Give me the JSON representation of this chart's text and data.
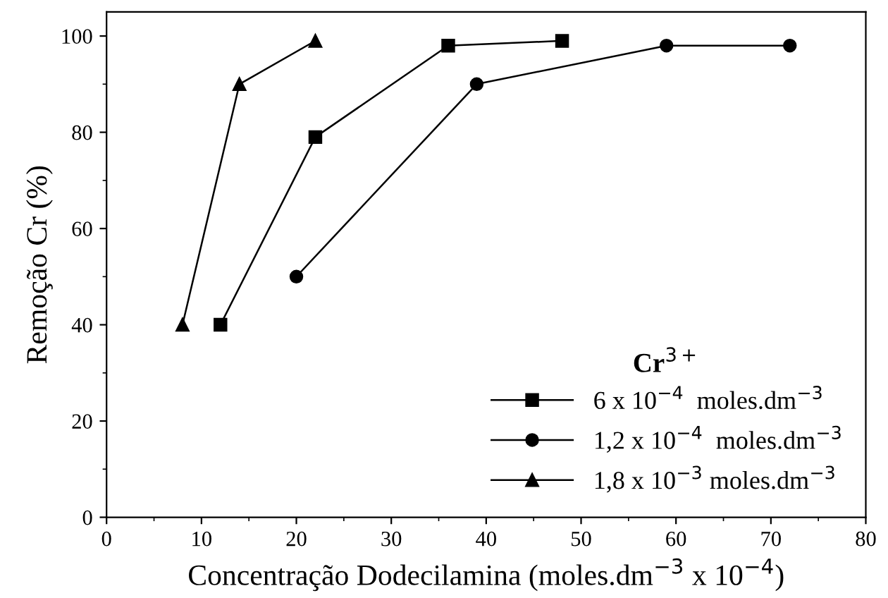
{
  "chart_data": {
    "type": "line",
    "xlabel": "Concentração Dodecilamina (moles.dm$^{−3}$ x 10$^{−4}$)",
    "ylabel": "Remoção Cr (%)",
    "legend_title": "Cr$^{3+}$",
    "xlim": [
      0,
      80
    ],
    "xticks": [
      0,
      10,
      20,
      30,
      40,
      50,
      60,
      70,
      80
    ],
    "ylim": [
      0,
      105
    ],
    "yticks": [
      0,
      20,
      40,
      60,
      80,
      100
    ],
    "legend": "bottom right",
    "grid": false,
    "series": [
      {
        "name": "6 x 10$^{−4}$  moles.dm$^{−3}$",
        "color": "#000000",
        "marker": "square",
        "x": [
          12,
          22,
          36,
          48
        ],
        "values": [
          40,
          79,
          98,
          99
        ]
      },
      {
        "name": "1,2 x 10$^{−4}$  moles.dm$^{−3}$",
        "color": "#000000",
        "marker": "circle",
        "x": [
          20,
          39,
          59,
          72
        ],
        "values": [
          50,
          90,
          98,
          98
        ]
      },
      {
        "name": "1,8 x 10$^{−3}$ moles.dm$^{−3}$",
        "color": "#000000",
        "marker": "triangle",
        "x": [
          8,
          14,
          22
        ],
        "values": [
          40,
          90,
          99
        ]
      }
    ]
  }
}
